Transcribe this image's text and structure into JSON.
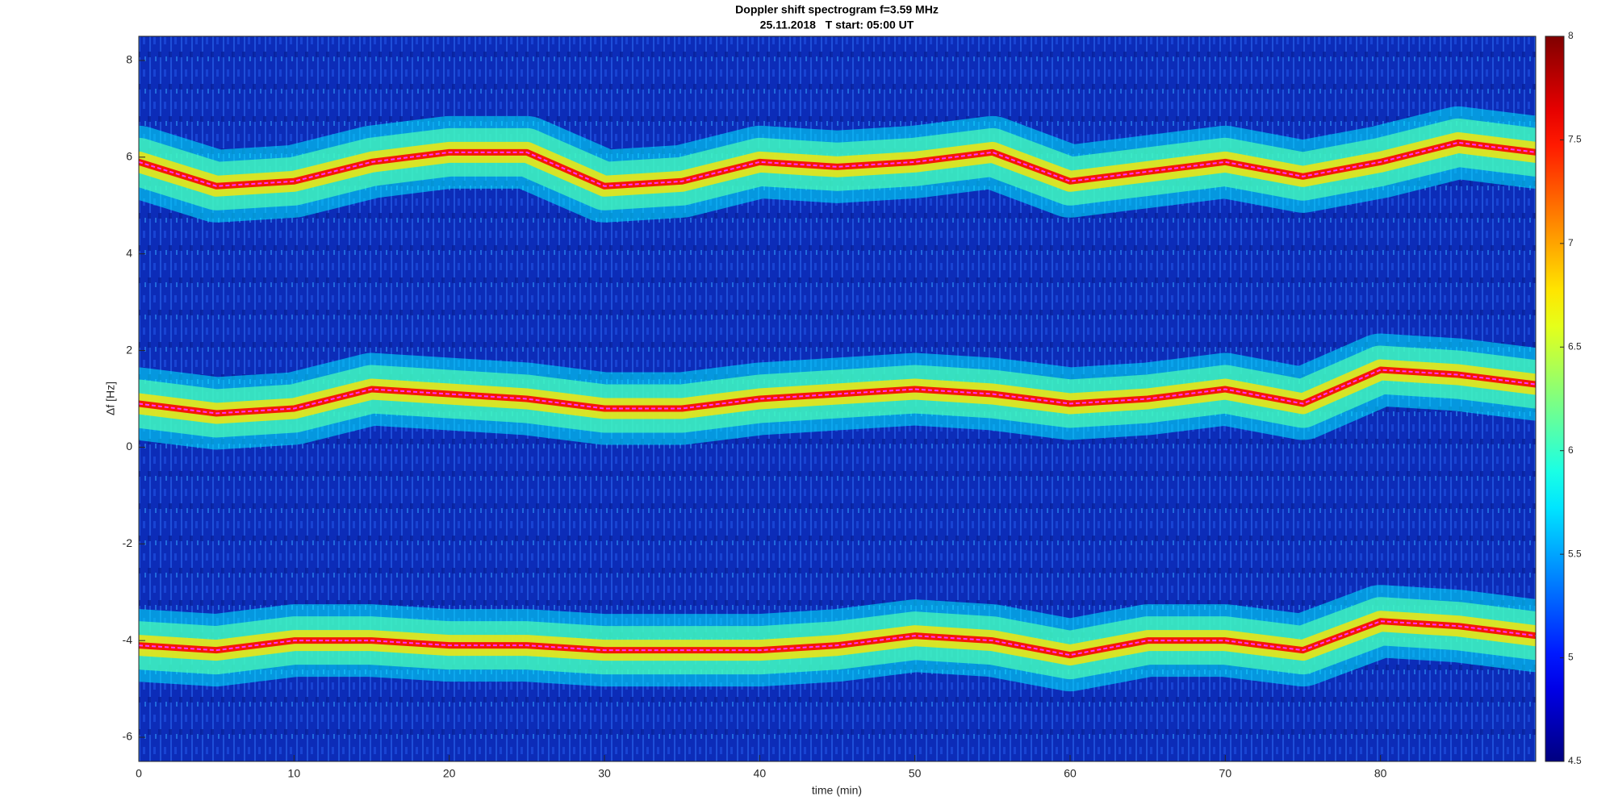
{
  "chart_data": {
    "type": "spectrogram",
    "title": "Doppler shift spectrogram f=3.59 MHz",
    "subtitle": "25.11.2018   T start: 05:00 UT",
    "x_label": "time (min)",
    "y_label": "Δf [Hz]",
    "x": [
      0,
      5,
      10,
      15,
      20,
      25,
      30,
      35,
      40,
      45,
      50,
      55,
      60,
      65,
      70,
      75,
      80,
      85,
      90
    ],
    "series": [
      {
        "color": "#ff33ff",
        "values": [
          5.9,
          5.4,
          5.5,
          5.9,
          6.1,
          6.1,
          5.4,
          5.5,
          5.9,
          5.8,
          5.9,
          6.1,
          5.5,
          5.7,
          5.9,
          5.6,
          5.9,
          6.3,
          6.1
        ]
      },
      {
        "color": "#ff33ff",
        "values": [
          0.9,
          0.7,
          0.8,
          1.2,
          1.1,
          1.0,
          0.8,
          0.8,
          1.0,
          1.1,
          1.2,
          1.1,
          0.9,
          1.0,
          1.2,
          0.9,
          1.6,
          1.5,
          1.3
        ]
      },
      {
        "color": "#ff33ff",
        "values": [
          -4.1,
          -4.2,
          -4.0,
          -4.0,
          -4.1,
          -4.1,
          -4.2,
          -4.2,
          -4.2,
          -4.1,
          -3.9,
          -4.0,
          -4.3,
          -4.0,
          -4.0,
          -4.2,
          -3.6,
          -3.7,
          -3.9
        ]
      }
    ],
    "xlim": [
      0,
      90
    ],
    "xticks": [
      0,
      10,
      20,
      30,
      40,
      50,
      60,
      70,
      80
    ],
    "ylim": [
      -6.5,
      8.5
    ],
    "yticks": [
      -6,
      -4,
      -2,
      0,
      2,
      4,
      6,
      8
    ],
    "colormap": "jet",
    "clim": [
      4.5,
      8
    ],
    "cticks": [
      4.5,
      5,
      5.5,
      6,
      6.5,
      7,
      7.5,
      8
    ]
  }
}
